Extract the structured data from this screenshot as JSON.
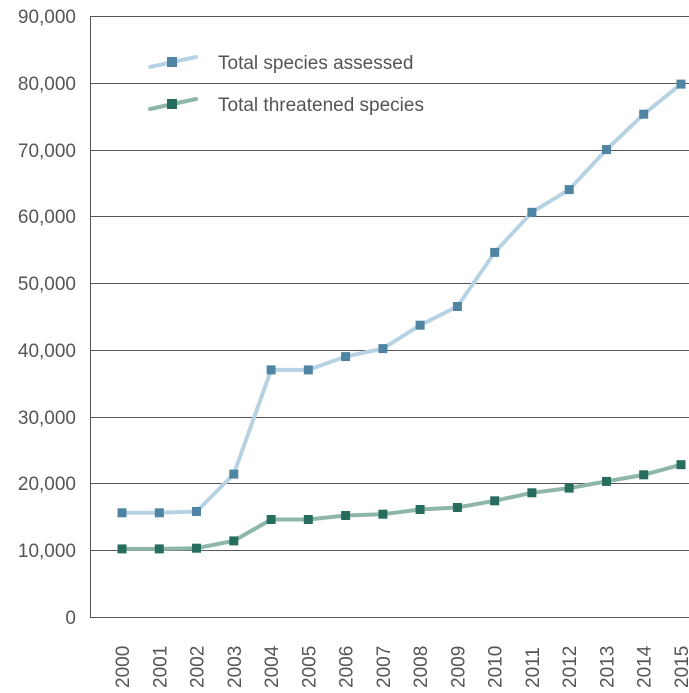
{
  "chart_data": {
    "type": "line",
    "title": "",
    "xlabel": "",
    "ylabel": "",
    "x": [
      "2000",
      "2001",
      "2002",
      "2003",
      "2004",
      "2005",
      "2006",
      "2007",
      "2008",
      "2009",
      "2010",
      "2011",
      "2012",
      "2013",
      "2014",
      "2015"
    ],
    "ylim": [
      0,
      90000
    ],
    "y_ticks": [
      0,
      10000,
      20000,
      30000,
      40000,
      50000,
      60000,
      70000,
      80000,
      90000
    ],
    "y_tick_labels": [
      "0",
      "10,000",
      "20,000",
      "30,000",
      "40,000",
      "50,000",
      "60,000",
      "70,000",
      "80,000",
      "90,000"
    ],
    "grid": "horizontal",
    "legend_position": "top-left",
    "series": [
      {
        "name": "Total species assessed",
        "values": [
          15600,
          15600,
          15800,
          21400,
          37000,
          37000,
          39000,
          40200,
          43700,
          46500,
          54600,
          60600,
          64000,
          70000,
          75300,
          79800
        ],
        "line_color": "#b7d3e3",
        "marker_color": "#4f84a3"
      },
      {
        "name": "Total threatened species",
        "values": [
          10200,
          10200,
          10300,
          11400,
          14600,
          14600,
          15200,
          15400,
          16100,
          16400,
          17400,
          18600,
          19300,
          20300,
          21300,
          22800
        ],
        "line_color": "#8fb7a9",
        "marker_color": "#276d5d"
      }
    ]
  },
  "colors": {
    "axis": "#555555",
    "grid": "#555555",
    "text": "#555555"
  }
}
